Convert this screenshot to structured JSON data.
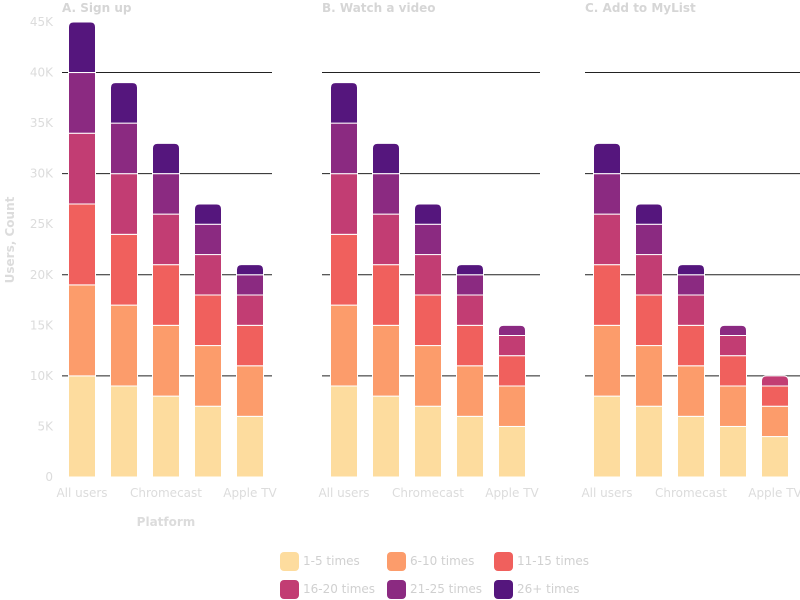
{
  "chart_data": {
    "type": "bar",
    "stacked": true,
    "ylabel": "Users, Count",
    "xlabel": "Platform",
    "ylim": [
      0,
      45000
    ],
    "yticks": [
      "0",
      "5K",
      "10K",
      "15K",
      "20K",
      "25K",
      "30K",
      "35K",
      "40K",
      "45K"
    ],
    "grid": "horizontal at 10K, 20K, 30K, 40K",
    "legend_position": "bottom",
    "categories": [
      "All users",
      "",
      "Chromecast",
      "",
      "Apple TV"
    ],
    "series_names": [
      "1-5 times",
      "6-10 times",
      "11-15 times",
      "16-20 times",
      "21-25 times",
      "26+ times"
    ],
    "colors": [
      "#fddc9e",
      "#fc9c6b",
      "#f0605d",
      "#c23d73",
      "#8b2a81",
      "#55167d"
    ],
    "panels": [
      {
        "title": "A. Sign up",
        "series": [
          {
            "name": "1-5 times",
            "values": [
              10000,
              9000,
              8000,
              7000,
              6000
            ]
          },
          {
            "name": "6-10 times",
            "values": [
              9000,
              8000,
              7000,
              6000,
              5000
            ]
          },
          {
            "name": "11-15 times",
            "values": [
              8000,
              7000,
              6000,
              5000,
              4000
            ]
          },
          {
            "name": "16-20 times",
            "values": [
              7000,
              6000,
              5000,
              4000,
              3000
            ]
          },
          {
            "name": "21-25 times",
            "values": [
              6000,
              5000,
              4000,
              3000,
              2000
            ]
          },
          {
            "name": "26+ times",
            "values": [
              5000,
              4000,
              3000,
              2000,
              1000
            ]
          }
        ]
      },
      {
        "title": "B. Watch a video",
        "series": [
          {
            "name": "1-5 times",
            "values": [
              9000,
              8000,
              7000,
              6000,
              5000
            ]
          },
          {
            "name": "6-10 times",
            "values": [
              8000,
              7000,
              6000,
              5000,
              4000
            ]
          },
          {
            "name": "11-15 times",
            "values": [
              7000,
              6000,
              5000,
              4000,
              3000
            ]
          },
          {
            "name": "16-20 times",
            "values": [
              6000,
              5000,
              4000,
              3000,
              2000
            ]
          },
          {
            "name": "21-25 times",
            "values": [
              5000,
              4000,
              3000,
              2000,
              1000
            ]
          },
          {
            "name": "26+ times",
            "values": [
              4000,
              3000,
              2000,
              1000,
              0
            ]
          }
        ]
      },
      {
        "title": "C. Add to MyList",
        "series": [
          {
            "name": "1-5 times",
            "values": [
              8000,
              7000,
              6000,
              5000,
              4000
            ]
          },
          {
            "name": "6-10 times",
            "values": [
              7000,
              6000,
              5000,
              4000,
              3000
            ]
          },
          {
            "name": "11-15 times",
            "values": [
              6000,
              5000,
              4000,
              3000,
              2000
            ]
          },
          {
            "name": "16-20 times",
            "values": [
              5000,
              4000,
              3000,
              2000,
              1000
            ]
          },
          {
            "name": "21-25 times",
            "values": [
              4000,
              3000,
              2000,
              1000,
              0
            ]
          },
          {
            "name": "26+ times",
            "values": [
              3000,
              2000,
              1000,
              0,
              0
            ]
          }
        ]
      }
    ]
  }
}
